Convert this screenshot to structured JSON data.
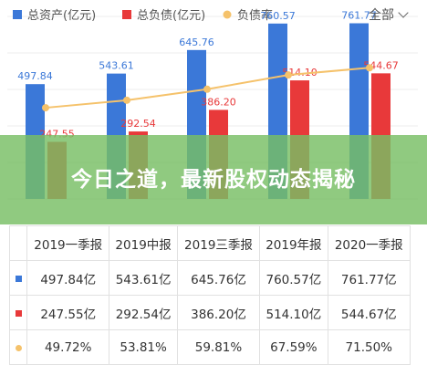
{
  "legend": [
    {
      "label": "总资产(亿元)",
      "color": "#3b78d8",
      "shape": "square"
    },
    {
      "label": "总负债(亿元)",
      "color": "#e8393a",
      "shape": "square"
    },
    {
      "label": "负债率",
      "color": "#f5c26b",
      "shape": "circle"
    }
  ],
  "filter": {
    "label": "全部"
  },
  "banner": {
    "title": "今日之道，最新股权动态揭秘"
  },
  "chart_data": {
    "type": "bar",
    "categories": [
      "2019一季报",
      "2019中报",
      "2019三季报",
      "2019年报",
      "2020一季报"
    ],
    "series": [
      {
        "name": "总资产(亿元)",
        "type": "bar",
        "color": "#3b78d8",
        "values": [
          497.84,
          543.61,
          645.76,
          760.57,
          761.77
        ],
        "labels": [
          "497.84",
          "543.61",
          "645.76",
          "760.57",
          "761.77"
        ]
      },
      {
        "name": "总负债(亿元)",
        "type": "bar",
        "color": "#e8393a",
        "values": [
          247.55,
          292.54,
          386.2,
          514.1,
          544.67
        ],
        "labels": [
          "247.55",
          "292.54",
          "386.20",
          "514.10",
          "544.67"
        ]
      },
      {
        "name": "负债率",
        "type": "line",
        "color": "#f5c26b",
        "values": [
          49.72,
          53.81,
          59.81,
          67.59,
          71.5
        ]
      }
    ],
    "ylim": [
      0,
      800
    ],
    "grid": true
  },
  "table": {
    "headers": [
      "2019一季报",
      "2019中报",
      "2019三季报",
      "2019年报",
      "2020一季报"
    ],
    "rows": [
      {
        "color": "#3b78d8",
        "shape": "square",
        "cells": [
          "497.84亿",
          "543.61亿",
          "645.76亿",
          "760.57亿",
          "761.77亿"
        ]
      },
      {
        "color": "#e8393a",
        "shape": "square",
        "cells": [
          "247.55亿",
          "292.54亿",
          "386.20亿",
          "514.10亿",
          "544.67亿"
        ]
      },
      {
        "color": "#f5c26b",
        "shape": "circle",
        "cells": [
          "49.72%",
          "53.81%",
          "59.81%",
          "67.59%",
          "71.50%"
        ]
      }
    ]
  }
}
